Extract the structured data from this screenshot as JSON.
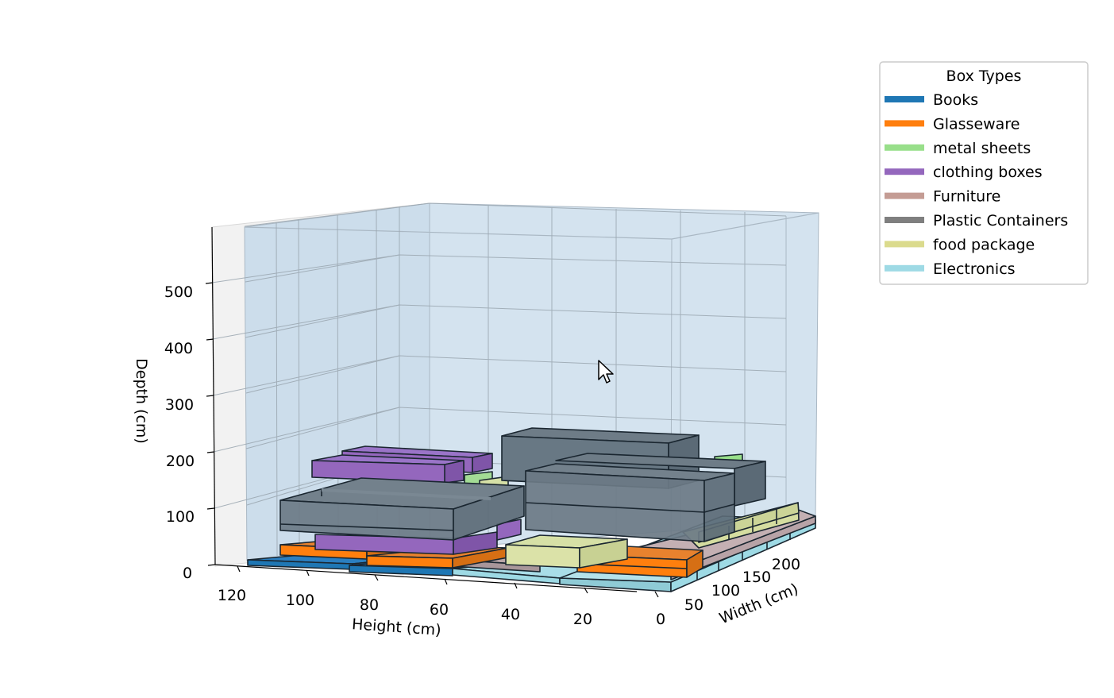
{
  "chart_data": {
    "type": "3d-bar",
    "axes": {
      "x": {
        "label": "Height (cm)",
        "ticks": [
          "0",
          "20",
          "40",
          "60",
          "80",
          "100",
          "120"
        ]
      },
      "y": {
        "label": "Width (cm)",
        "ticks": [
          "50",
          "100",
          "150",
          "200"
        ]
      },
      "z": {
        "label": "Depth (cm)",
        "ticks": [
          "0",
          "100",
          "200",
          "300",
          "400",
          "500"
        ]
      }
    },
    "legend": {
      "title": "Box Types",
      "placement": "top-right",
      "entries": [
        {
          "name": "Books",
          "color": "#1f77b4"
        },
        {
          "name": "Glasseware",
          "color": "#ff7f0e"
        },
        {
          "name": "metal sheets",
          "color": "#98df8a"
        },
        {
          "name": "clothing boxes",
          "color": "#9467bd"
        },
        {
          "name": "Furniture",
          "color": "#c49c94"
        },
        {
          "name": "Plastic Containers",
          "color": "#7f7f7f"
        },
        {
          "name": "food package",
          "color": "#dbdb8d"
        },
        {
          "name": "Electronics",
          "color": "#9edae5"
        }
      ]
    },
    "pane_color": "#c8dcec",
    "grid": true
  }
}
